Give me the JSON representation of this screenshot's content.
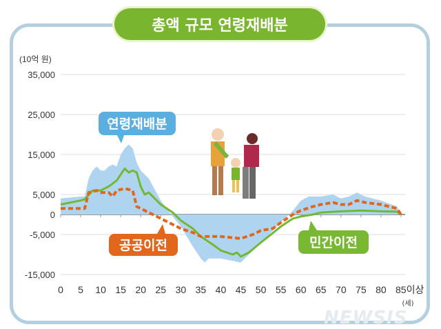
{
  "title": "총액 규모 연령재배분",
  "watermark": "NEWSIS",
  "chart_data": {
    "type": "line",
    "title": "총액 규모 연령재배분",
    "ylabel": "(10억 원)",
    "xlabel": "(세)",
    "ylim": [
      -15000,
      35000
    ],
    "xlim": [
      0,
      85
    ],
    "yticks": [
      "35,000",
      "25,000",
      "15,000",
      "5,000",
      "0",
      "-5,000",
      "-15,000"
    ],
    "ytick_values": [
      35000,
      25000,
      15000,
      5000,
      0,
      -5000,
      -15000
    ],
    "xticks": [
      "0",
      "5",
      "10",
      "15",
      "20",
      "25",
      "30",
      "35",
      "40",
      "45",
      "50",
      "55",
      "60",
      "65",
      "70",
      "75",
      "80",
      "85이상"
    ],
    "grid": true,
    "series": [
      {
        "name": "연령재배분",
        "style": "area",
        "color": "#aed4ef",
        "x": [
          0,
          5,
          6,
          7,
          8,
          9,
          10,
          11,
          12,
          13,
          14,
          15,
          16,
          17,
          18,
          19,
          20,
          22,
          25,
          28,
          30,
          33,
          35,
          36,
          37,
          40,
          45,
          47,
          50,
          55,
          58,
          60,
          62,
          65,
          68,
          70,
          72,
          74,
          76,
          80,
          84,
          85
        ],
        "y": [
          4000,
          4500,
          4500,
          9000,
          11000,
          12000,
          11000,
          11000,
          12000,
          12500,
          12000,
          15000,
          16500,
          17500,
          16500,
          13000,
          11000,
          9000,
          3500,
          -500,
          -3000,
          -8000,
          -11000,
          -12000,
          -11000,
          -11000,
          -12000,
          -10000,
          -7000,
          -2000,
          1000,
          3500,
          4500,
          4500,
          5000,
          4000,
          4500,
          5500,
          4500,
          3500,
          2000,
          0
        ]
      },
      {
        "name": "민간이전",
        "style": "solid",
        "color": "#72b833",
        "x": [
          0,
          5,
          6,
          8,
          10,
          12,
          14,
          16,
          17,
          18,
          19,
          20,
          21,
          22,
          25,
          28,
          30,
          33,
          35,
          38,
          40,
          43,
          44,
          45,
          47,
          50,
          55,
          58,
          60,
          63,
          65,
          70,
          75,
          80,
          84,
          85
        ],
        "y": [
          2500,
          3500,
          3800,
          6000,
          6000,
          7000,
          8500,
          11500,
          10500,
          11000,
          10500,
          7000,
          5000,
          5500,
          2500,
          500,
          -1500,
          -3500,
          -5500,
          -7500,
          -9000,
          -10000,
          -9500,
          -10500,
          -9500,
          -7000,
          -3000,
          -1000,
          -500,
          0,
          500,
          800,
          1000,
          800,
          700,
          0
        ]
      },
      {
        "name": "공공이전",
        "style": "dashed",
        "color": "#e2661c",
        "x": [
          0,
          6,
          7,
          9,
          10,
          12,
          13,
          14,
          16,
          18,
          19,
          22,
          25,
          28,
          30,
          33,
          35,
          38,
          40,
          45,
          48,
          50,
          53,
          55,
          58,
          60,
          63,
          65,
          68,
          70,
          72,
          74,
          76,
          80,
          84,
          85
        ],
        "y": [
          1500,
          1500,
          5500,
          6000,
          5500,
          5500,
          4500,
          6000,
          6500,
          6000,
          2000,
          500,
          -1000,
          -2500,
          -3500,
          -4500,
          -5500,
          -5500,
          -5500,
          -6000,
          -5000,
          -4000,
          -3500,
          -2000,
          0,
          1000,
          2000,
          2500,
          3000,
          2500,
          2500,
          3500,
          3000,
          2500,
          1500,
          0
        ]
      }
    ],
    "annotations": [
      "연령재배분",
      "공공이전",
      "민간이전"
    ]
  }
}
